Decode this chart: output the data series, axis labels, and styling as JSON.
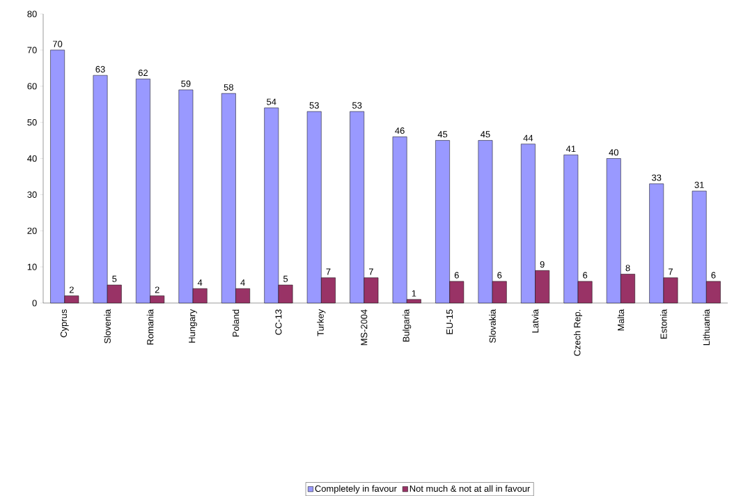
{
  "chart_data": {
    "type": "bar",
    "categories": [
      "Cyprus",
      "Slovenia",
      "Romania",
      "Hungary",
      "Poland",
      "CC-13",
      "Turkey",
      "MS-2004",
      "Bulgaria",
      "EU-15",
      "Slovakia",
      "Latvia",
      "Czech Rep.",
      "Malta",
      "Estonia",
      "Lithuania"
    ],
    "series": [
      {
        "name": "Completely in favour",
        "color": "#9999ff",
        "values": [
          70,
          63,
          62,
          59,
          58,
          54,
          53,
          53,
          46,
          45,
          45,
          44,
          41,
          40,
          33,
          31
        ]
      },
      {
        "name": "Not much & not at all in favour",
        "color": "#993366",
        "values": [
          2,
          5,
          2,
          4,
          4,
          5,
          7,
          7,
          1,
          6,
          6,
          9,
          6,
          8,
          7,
          6
        ]
      }
    ],
    "ylim": [
      0,
      80
    ],
    "yticks": [
      0,
      10,
      20,
      30,
      40,
      50,
      60,
      70,
      80
    ],
    "data_labels": true,
    "legend": "bottom",
    "grid": false
  }
}
